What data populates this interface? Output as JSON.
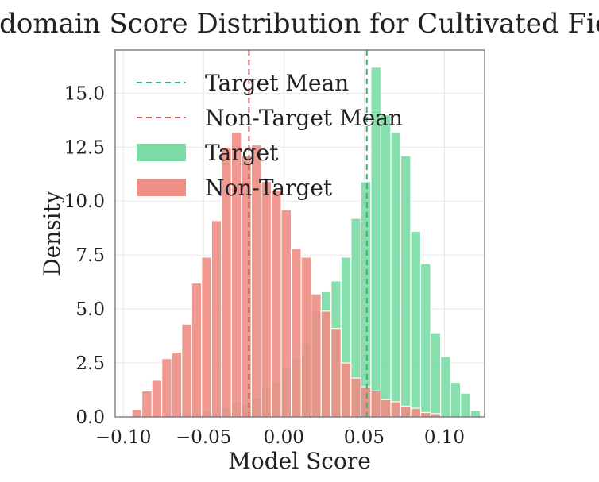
{
  "chart_data": {
    "type": "bar",
    "title": "In-domain Score Distribution for Cultivated Field",
    "xlabel": "Model Score",
    "ylabel": "Density",
    "xlim": [
      -0.105,
      0.125
    ],
    "ylim": [
      0,
      17
    ],
    "x_ticks": [
      -0.1,
      -0.05,
      0.0,
      0.05,
      0.1
    ],
    "x_tick_labels": [
      "−0.10",
      "−0.05",
      "0.00",
      "0.05",
      "0.10"
    ],
    "y_ticks": [
      0.0,
      2.5,
      5.0,
      7.5,
      10.0,
      12.5,
      15.0
    ],
    "y_tick_labels": [
      "0.0",
      "2.5",
      "5.0",
      "7.5",
      "10.0",
      "12.5",
      "15.0"
    ],
    "grid": true,
    "legend_position": "top-left",
    "legend": [
      {
        "label": "Target Mean",
        "kind": "dashed-line",
        "color": "#3cb371"
      },
      {
        "label": "Non-Target Mean",
        "kind": "dashed-line",
        "color": "#cd5c5c"
      },
      {
        "label": "Target",
        "kind": "patch",
        "color": "#7bdca5"
      },
      {
        "label": "Non-Target",
        "kind": "patch",
        "color": "#ee8e85"
      }
    ],
    "series": [
      {
        "name": "Target",
        "color": "#7bdca5",
        "bin_width": 0.0062,
        "bins": [
          {
            "x0": -0.0698,
            "density": 0.1
          },
          {
            "x0": -0.0636,
            "density": 0.15
          },
          {
            "x0": -0.0574,
            "density": 0.2
          },
          {
            "x0": -0.0512,
            "density": 0.25
          },
          {
            "x0": -0.045,
            "density": 0.2
          },
          {
            "x0": -0.0388,
            "density": 0.4
          },
          {
            "x0": -0.0326,
            "density": 0.7
          },
          {
            "x0": -0.0264,
            "density": 0.6
          },
          {
            "x0": -0.0202,
            "density": 0.9
          },
          {
            "x0": -0.014,
            "density": 1.4
          },
          {
            "x0": -0.0078,
            "density": 1.6
          },
          {
            "x0": -0.0016,
            "density": 2.3
          },
          {
            "x0": 0.0046,
            "density": 2.7
          },
          {
            "x0": 0.0108,
            "density": 3.4
          },
          {
            "x0": 0.017,
            "density": 4.9
          },
          {
            "x0": 0.0232,
            "density": 5.8
          },
          {
            "x0": 0.0294,
            "density": 6.3
          },
          {
            "x0": 0.0356,
            "density": 7.4
          },
          {
            "x0": 0.0418,
            "density": 9.2
          },
          {
            "x0": 0.048,
            "density": 10.9
          },
          {
            "x0": 0.0542,
            "density": 16.2
          },
          {
            "x0": 0.0604,
            "density": 14.0
          },
          {
            "x0": 0.0666,
            "density": 13.2
          },
          {
            "x0": 0.0728,
            "density": 12.1
          },
          {
            "x0": 0.079,
            "density": 8.6
          },
          {
            "x0": 0.0852,
            "density": 7.1
          },
          {
            "x0": 0.0914,
            "density": 3.9
          },
          {
            "x0": 0.0976,
            "density": 2.8
          },
          {
            "x0": 0.1038,
            "density": 1.6
          },
          {
            "x0": 0.11,
            "density": 1.1
          },
          {
            "x0": 0.1162,
            "density": 0.3
          }
        ]
      },
      {
        "name": "Non-Target",
        "color": "#ee8e85",
        "bin_width": 0.0062,
        "bins": [
          {
            "x0": -0.0946,
            "density": 0.35
          },
          {
            "x0": -0.0884,
            "density": 1.2
          },
          {
            "x0": -0.0822,
            "density": 1.7
          },
          {
            "x0": -0.076,
            "density": 2.7
          },
          {
            "x0": -0.0698,
            "density": 3.0
          },
          {
            "x0": -0.0636,
            "density": 4.3
          },
          {
            "x0": -0.0574,
            "density": 6.2
          },
          {
            "x0": -0.0512,
            "density": 7.4
          },
          {
            "x0": -0.045,
            "density": 9.1
          },
          {
            "x0": -0.0388,
            "density": 12.5
          },
          {
            "x0": -0.0326,
            "density": 13.2
          },
          {
            "x0": -0.0264,
            "density": 12.1
          },
          {
            "x0": -0.0202,
            "density": 12.6
          },
          {
            "x0": -0.014,
            "density": 10.9
          },
          {
            "x0": -0.0078,
            "density": 10.5
          },
          {
            "x0": -0.0016,
            "density": 9.6
          },
          {
            "x0": 0.0046,
            "density": 7.8
          },
          {
            "x0": 0.0108,
            "density": 7.4
          },
          {
            "x0": 0.017,
            "density": 5.7
          },
          {
            "x0": 0.0232,
            "density": 4.9
          },
          {
            "x0": 0.0294,
            "density": 4.1
          },
          {
            "x0": 0.0356,
            "density": 2.5
          },
          {
            "x0": 0.0418,
            "density": 1.8
          },
          {
            "x0": 0.048,
            "density": 1.4
          },
          {
            "x0": 0.0542,
            "density": 1.2
          },
          {
            "x0": 0.0604,
            "density": 0.8
          },
          {
            "x0": 0.0666,
            "density": 0.7
          },
          {
            "x0": 0.0728,
            "density": 0.5
          },
          {
            "x0": 0.079,
            "density": 0.4
          },
          {
            "x0": 0.0852,
            "density": 0.2
          },
          {
            "x0": 0.0914,
            "density": 0.15
          }
        ]
      }
    ],
    "mean_lines": [
      {
        "name": "Target Mean",
        "x": 0.0517,
        "color": "#3cb371"
      },
      {
        "name": "Non-Target Mean",
        "x": -0.0217,
        "color": "#cd5c5c"
      }
    ]
  }
}
